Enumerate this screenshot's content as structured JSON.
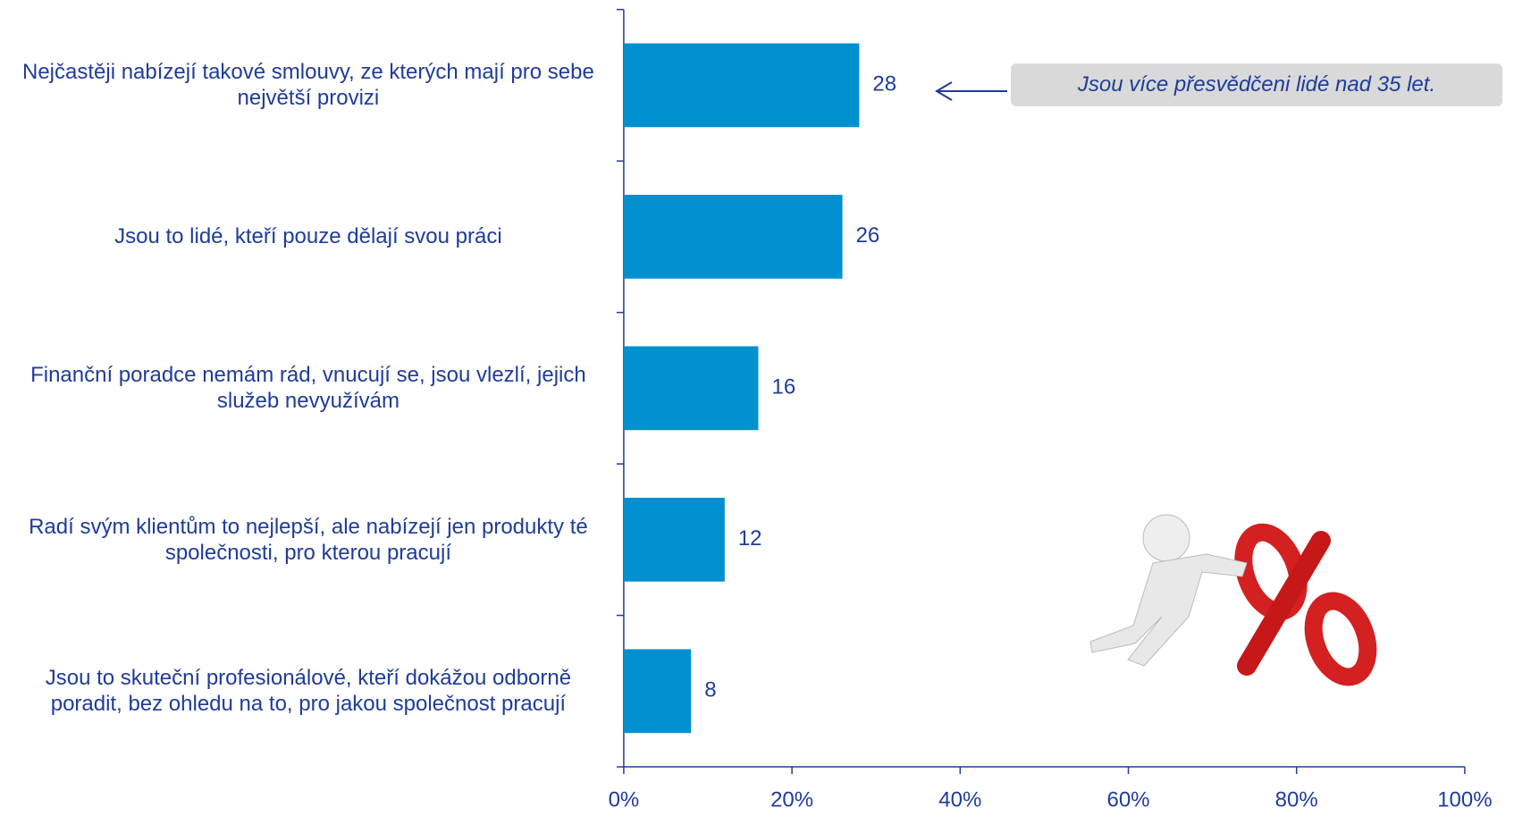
{
  "chart_data": {
    "type": "barh",
    "categories": [
      "Nejčastěji nabízejí takové smlouvy, ze kterých mají pro sebe největší provizi",
      "Jsou to lidé, kteří pouze dělají svou práci",
      "Finanční poradce nemám rád, vnucují se, jsou vlezlí, jejich služeb nevyužívám",
      "Radí svým klientům to nejlepší, ale nabízejí jen produkty té společnosti, pro kterou pracují",
      "Jsou to skuteční profesionálové, kteří dokážou odborně poradit, bez ohledu na to, pro jakou společnost pracují"
    ],
    "values": [
      28,
      26,
      16,
      12,
      8
    ],
    "color": "#0090d0",
    "xlim": [
      0,
      100
    ],
    "xticks": [
      {
        "value": 0,
        "label": "0%"
      },
      {
        "value": 20,
        "label": "20%"
      },
      {
        "value": 40,
        "label": "40%"
      },
      {
        "value": 60,
        "label": "60%"
      },
      {
        "value": 80,
        "label": "80%"
      },
      {
        "value": 100,
        "label": "100%"
      }
    ],
    "annotation": "Jsou více přesvědčeni lidé nad 35 let."
  }
}
